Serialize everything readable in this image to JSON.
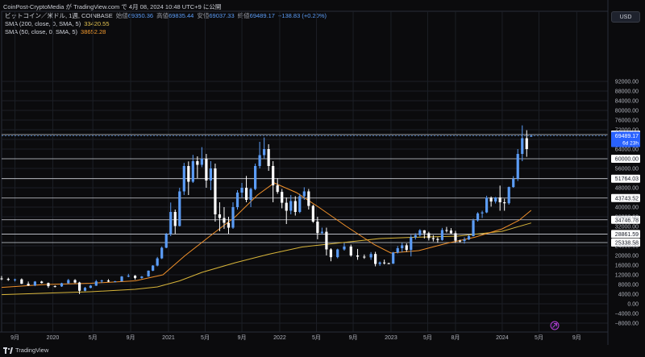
{
  "header": {
    "published_by": "CoinPost-CryptoMedia が TradingView.com で 4月 08, 2024 10:48 UTC+9 に公開"
  },
  "legend": {
    "symbol": "ビットコイン／米ドル, 1週, COINBASE",
    "open_label": "始値",
    "open_value": "69350.36",
    "high_label": "高値",
    "high_value": "69835.44",
    "low_label": "安値",
    "low_value": "69037.33",
    "close_label": "終値",
    "close_value": "69489.17",
    "change": "+138.83 (+0.20%)",
    "sma200_label": "SMA (200, close, 0, SMA, 5)",
    "sma200_value": "33420.55",
    "sma50_label": "SMA (50, close, 0, SMA, 5)",
    "sma50_value": "38652.28"
  },
  "price_scale": {
    "currency_button": "USD",
    "current_price": "69489.17",
    "countdown": "6d 23h"
  },
  "footer": {
    "brand": "TradingView"
  },
  "colors": {
    "background": "#0b0b0d",
    "up_candle": "#5b9cf6",
    "down_candle": "#ffffff",
    "sma200": "#d8b53a",
    "sma50": "#f0902a",
    "level_lines": "#d1d4dc"
  },
  "chart_data": {
    "type": "candlestick",
    "timeframe": "1W",
    "yticks": [
      "92000.00",
      "88000.00",
      "84000.00",
      "80000.00",
      "76000.00",
      "72000.00",
      "68000.00",
      "64000.00",
      "56000.00",
      "48000.00",
      "40000.00",
      "36000.00",
      "32000.00",
      "24000.00",
      "20000.00",
      "16000.00",
      "12000.00",
      "8000.00",
      "4000.00",
      "0.00",
      "−4000.00",
      "−8000.00"
    ],
    "xticks": [
      "9月",
      "2020",
      "5月",
      "9月",
      "2021",
      "5月",
      "9月",
      "2022",
      "5月",
      "9月",
      "2023",
      "5月",
      "8月",
      "2024",
      "5月",
      "9月"
    ],
    "level_lines": [
      "70000.00",
      "60000.00",
      "51764.03",
      "43743.52",
      "34746.78",
      "28861.59",
      "25338.58"
    ],
    "ylim": [
      -9000,
      96000
    ],
    "xlim": [
      2019.5,
      2024.95
    ],
    "sma200": [
      [
        2019.5,
        3800
      ],
      [
        2019.9,
        4400
      ],
      [
        2020.3,
        5000
      ],
      [
        2020.7,
        6000
      ],
      [
        2020.9,
        7000
      ],
      [
        2021.1,
        9500
      ],
      [
        2021.3,
        13000
      ],
      [
        2021.6,
        17000
      ],
      [
        2021.9,
        20500
      ],
      [
        2022.2,
        23500
      ],
      [
        2022.6,
        25500
      ],
      [
        2022.9,
        27000
      ],
      [
        2023.2,
        27500
      ],
      [
        2023.6,
        28000
      ],
      [
        2024.0,
        30000
      ],
      [
        2024.26,
        33420
      ]
    ],
    "sma50": [
      [
        2019.5,
        6800
      ],
      [
        2019.9,
        8000
      ],
      [
        2020.3,
        8500
      ],
      [
        2020.7,
        9500
      ],
      [
        2020.95,
        12000
      ],
      [
        2021.15,
        20000
      ],
      [
        2021.4,
        29000
      ],
      [
        2021.6,
        36000
      ],
      [
        2021.8,
        45000
      ],
      [
        2021.95,
        50000
      ],
      [
        2022.15,
        46000
      ],
      [
        2022.35,
        40000
      ],
      [
        2022.6,
        32000
      ],
      [
        2022.85,
        24500
      ],
      [
        2023.0,
        21000
      ],
      [
        2023.25,
        22000
      ],
      [
        2023.5,
        25000
      ],
      [
        2023.75,
        27500
      ],
      [
        2024.0,
        31000
      ],
      [
        2024.15,
        34500
      ],
      [
        2024.26,
        38652
      ]
    ],
    "candles": [
      [
        2019.5,
        10500,
        11500,
        9800,
        10300
      ],
      [
        2019.56,
        10300,
        10800,
        9500,
        9900
      ],
      [
        2019.62,
        9900,
        10400,
        9200,
        10100
      ],
      [
        2019.68,
        10100,
        10500,
        8200,
        8300
      ],
      [
        2019.74,
        8300,
        9200,
        7400,
        7600
      ],
      [
        2019.8,
        7600,
        9400,
        7300,
        9200
      ],
      [
        2019.86,
        9200,
        9500,
        8400,
        8600
      ],
      [
        2019.92,
        8600,
        8800,
        6600,
        7300
      ],
      [
        2019.98,
        7300,
        7600,
        6800,
        7200
      ],
      [
        2020.04,
        7200,
        8700,
        7000,
        8500
      ],
      [
        2020.1,
        8500,
        10300,
        8300,
        9800
      ],
      [
        2020.16,
        9800,
        10200,
        8500,
        8800
      ],
      [
        2020.2,
        8800,
        9100,
        4000,
        5400
      ],
      [
        2020.25,
        5400,
        7000,
        5200,
        6600
      ],
      [
        2020.3,
        6600,
        7800,
        6400,
        7500
      ],
      [
        2020.35,
        7500,
        9900,
        7400,
        9300
      ],
      [
        2020.4,
        9300,
        10000,
        8600,
        9600
      ],
      [
        2020.46,
        9600,
        10200,
        9000,
        9200
      ],
      [
        2020.52,
        9200,
        9500,
        8900,
        9300
      ],
      [
        2020.58,
        9300,
        11500,
        9200,
        11300
      ],
      [
        2020.64,
        11300,
        12400,
        11000,
        11600
      ],
      [
        2020.7,
        11600,
        11900,
        10000,
        10700
      ],
      [
        2020.76,
        10700,
        11500,
        10400,
        11300
      ],
      [
        2020.82,
        11300,
        13800,
        11200,
        13700
      ],
      [
        2020.86,
        13700,
        16000,
        13500,
        15800
      ],
      [
        2020.9,
        15800,
        19400,
        15500,
        18800
      ],
      [
        2020.94,
        18800,
        23700,
        18500,
        23200
      ],
      [
        2020.98,
        23200,
        29300,
        23000,
        28900
      ],
      [
        2021.02,
        28900,
        41900,
        28000,
        38000
      ],
      [
        2021.06,
        38000,
        39000,
        28900,
        32200
      ],
      [
        2021.1,
        32200,
        48000,
        32000,
        46500
      ],
      [
        2021.14,
        46500,
        58300,
        45000,
        57000
      ],
      [
        2021.18,
        57000,
        58900,
        45000,
        50500
      ],
      [
        2021.22,
        50500,
        61600,
        50000,
        59000
      ],
      [
        2021.26,
        59000,
        61000,
        52000,
        57500
      ],
      [
        2021.3,
        57500,
        64800,
        56500,
        60000
      ],
      [
        2021.34,
        60000,
        62000,
        48000,
        51000
      ],
      [
        2021.38,
        51000,
        59000,
        47000,
        56000
      ],
      [
        2021.42,
        56000,
        58000,
        34000,
        37000
      ],
      [
        2021.46,
        37000,
        42000,
        30000,
        35500
      ],
      [
        2021.5,
        35500,
        40000,
        31000,
        33500
      ],
      [
        2021.54,
        33500,
        36000,
        29000,
        31500
      ],
      [
        2021.58,
        31500,
        42000,
        31000,
        40000
      ],
      [
        2021.62,
        40000,
        47000,
        39000,
        46000
      ],
      [
        2021.66,
        46000,
        50000,
        44000,
        48000
      ],
      [
        2021.7,
        48000,
        52900,
        42000,
        43000
      ],
      [
        2021.74,
        43000,
        48000,
        40000,
        47500
      ],
      [
        2021.78,
        47500,
        58000,
        47000,
        57000
      ],
      [
        2021.82,
        57000,
        67000,
        56000,
        61500
      ],
      [
        2021.86,
        61500,
        68800,
        60000,
        64000
      ],
      [
        2021.9,
        64000,
        66000,
        55000,
        57000
      ],
      [
        2021.94,
        57000,
        59000,
        42000,
        49000
      ],
      [
        2021.98,
        49000,
        52000,
        45500,
        46300
      ],
      [
        2022.02,
        46300,
        47500,
        39500,
        41800
      ],
      [
        2022.06,
        41800,
        44000,
        33000,
        38500
      ],
      [
        2022.1,
        38500,
        45000,
        37000,
        42500
      ],
      [
        2022.14,
        42500,
        44500,
        36500,
        38000
      ],
      [
        2022.18,
        38000,
        45500,
        37500,
        44500
      ],
      [
        2022.22,
        44500,
        48200,
        43000,
        46500
      ],
      [
        2022.26,
        46500,
        47500,
        39000,
        40500
      ],
      [
        2022.3,
        40500,
        41000,
        33500,
        34000
      ],
      [
        2022.34,
        34000,
        36000,
        26700,
        29300
      ],
      [
        2022.38,
        29300,
        31500,
        28600,
        29800
      ],
      [
        2022.42,
        29800,
        31500,
        20000,
        22500
      ],
      [
        2022.46,
        22500,
        23000,
        17600,
        19300
      ],
      [
        2022.52,
        19300,
        22800,
        18800,
        22500
      ],
      [
        2022.58,
        22500,
        25200,
        22000,
        23700
      ],
      [
        2022.64,
        23700,
        24500,
        19500,
        20000
      ],
      [
        2022.7,
        20000,
        22700,
        18200,
        19500
      ],
      [
        2022.76,
        19500,
        20400,
        18600,
        19200
      ],
      [
        2022.82,
        19200,
        21400,
        18200,
        20600
      ],
      [
        2022.86,
        20600,
        21500,
        15500,
        16500
      ],
      [
        2022.9,
        16500,
        17500,
        15700,
        17100
      ],
      [
        2022.94,
        17100,
        18300,
        16300,
        16800
      ],
      [
        2022.98,
        16800,
        17000,
        16400,
        16600
      ],
      [
        2023.02,
        16600,
        21500,
        16500,
        21200
      ],
      [
        2023.06,
        21200,
        23900,
        20800,
        23000
      ],
      [
        2023.1,
        23000,
        25200,
        21400,
        24200
      ],
      [
        2023.14,
        24200,
        25000,
        21500,
        22300
      ],
      [
        2023.18,
        22300,
        28500,
        19600,
        27500
      ],
      [
        2023.22,
        27500,
        29200,
        26600,
        28400
      ],
      [
        2023.26,
        28400,
        30900,
        27800,
        30400
      ],
      [
        2023.3,
        30400,
        30500,
        27000,
        29200
      ],
      [
        2023.34,
        29200,
        29800,
        26200,
        27200
      ],
      [
        2023.38,
        27200,
        28400,
        25800,
        26800
      ],
      [
        2023.42,
        26800,
        27500,
        25300,
        26400
      ],
      [
        2023.46,
        26400,
        31400,
        26100,
        30500
      ],
      [
        2023.5,
        30500,
        31800,
        29500,
        30300
      ],
      [
        2023.54,
        30300,
        31300,
        29000,
        29200
      ],
      [
        2023.58,
        29200,
        30200,
        25200,
        26100
      ],
      [
        2023.62,
        26100,
        26500,
        25400,
        26000
      ],
      [
        2023.66,
        26000,
        27500,
        24900,
        26600
      ],
      [
        2023.7,
        26600,
        28600,
        26400,
        28000
      ],
      [
        2023.74,
        28000,
        35200,
        27900,
        34500
      ],
      [
        2023.78,
        34500,
        37900,
        34000,
        37400
      ],
      [
        2023.82,
        37400,
        38500,
        35500,
        37800
      ],
      [
        2023.86,
        37800,
        44700,
        37500,
        43900
      ],
      [
        2023.9,
        43900,
        44400,
        40200,
        42300
      ],
      [
        2023.94,
        42300,
        44200,
        41500,
        44000
      ],
      [
        2023.98,
        44000,
        48900,
        38500,
        42000
      ],
      [
        2024.02,
        42000,
        43500,
        38500,
        41600
      ],
      [
        2024.06,
        41600,
        48500,
        41000,
        48300
      ],
      [
        2024.1,
        48300,
        52800,
        48000,
        51700
      ],
      [
        2024.14,
        51700,
        64000,
        50800,
        62000
      ],
      [
        2024.18,
        62000,
        73800,
        59000,
        68500
      ],
      [
        2024.22,
        68500,
        71800,
        60800,
        64000
      ],
      [
        2024.26,
        69350,
        69835,
        69037,
        69489
      ]
    ]
  }
}
